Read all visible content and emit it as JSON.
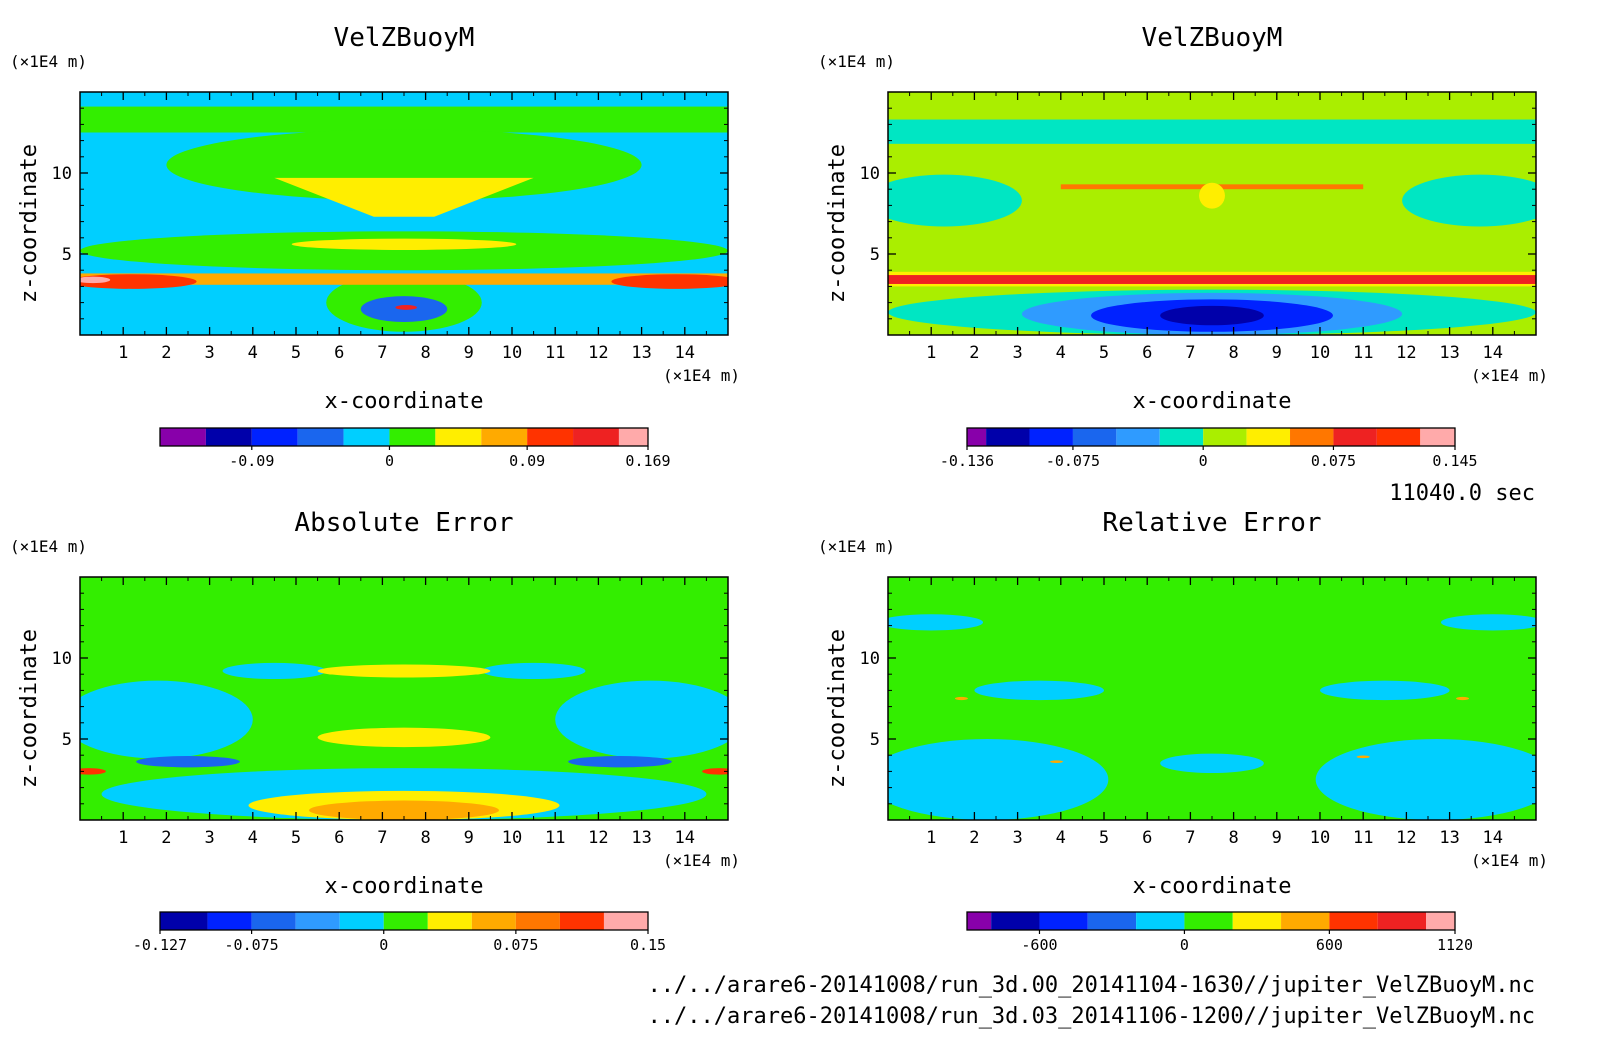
{
  "run_time": "11040.0 sec",
  "file_paths": [
    "../../arare6-20141008/run_3d.00_20141104-1630//jupiter_VelZBuoyM.nc",
    "../../arare6-20141008/run_3d.03_20141106-1200//jupiter_VelZBuoyM.nc"
  ],
  "colors": {
    "purple": "#8800aa",
    "navy": "#0000aa",
    "blue": "#0022ff",
    "midblue": "#1a66ee",
    "skyblue": "#2f9bff",
    "cyan": "#00cfff",
    "teal": "#00e6c3",
    "green": "#33ee00",
    "yellowgreen": "#aaee00",
    "yellow": "#ffee00",
    "orange": "#ffaa00",
    "darkorange": "#ff7700",
    "redorange": "#ff3300",
    "red": "#ee2222",
    "pink": "#ffaaaa"
  },
  "chart_data": [
    {
      "type": "heatmap",
      "title": "VelZBuoyM",
      "xlabel": "x-coordinate",
      "ylabel": "z-coordinate",
      "x_unit": "(×1E4 m)",
      "z_unit": "(×1E4 m)",
      "xlim": [
        0,
        15
      ],
      "zlim": [
        0,
        15
      ],
      "x_ticks": [
        1,
        2,
        3,
        4,
        5,
        6,
        7,
        8,
        9,
        10,
        11,
        12,
        13,
        14
      ],
      "z_ticks": [
        5,
        10
      ],
      "colorbar": {
        "tick_labels": [
          "-0.09",
          "0",
          "0.09",
          "0.169"
        ],
        "tick_values": [
          -0.09,
          0,
          0.09,
          0.169
        ],
        "levels": [
          -0.15,
          -0.12,
          -0.09,
          -0.06,
          -0.03,
          0,
          0.03,
          0.06,
          0.09,
          0.12,
          0.15,
          0.169
        ],
        "colors": [
          "#8800aa",
          "#0000aa",
          "#0022ff",
          "#1a66ee",
          "#00cfff",
          "#33ee00",
          "#ffee00",
          "#ffaa00",
          "#ff3300",
          "#ee2222",
          "#ffaaaa"
        ]
      },
      "background_color": "#00cfff",
      "regions": [
        {
          "color": "#33ee00",
          "shape": "rect",
          "x": [
            0,
            15
          ],
          "z": [
            12.5,
            14.1
          ]
        },
        {
          "color": "#33ee00",
          "shape": "ellipse",
          "cx": 7.5,
          "cz": 10.5,
          "rx": 5.5,
          "rz": 2.2
        },
        {
          "color": "#33ee00",
          "shape": "ellipse",
          "cx": 7.5,
          "cz": 5.2,
          "rx": 7.5,
          "rz": 1.2
        },
        {
          "color": "#33ee00",
          "shape": "ellipse",
          "cx": 7.5,
          "cz": 2.0,
          "rx": 1.8,
          "rz": 1.8
        },
        {
          "color": "#ffee00",
          "shape": "poly",
          "pts": [
            [
              4.5,
              9.7
            ],
            [
              10.5,
              9.7
            ],
            [
              8.2,
              7.3
            ],
            [
              6.8,
              7.3
            ]
          ]
        },
        {
          "color": "#ffee00",
          "shape": "ellipse",
          "cx": 7.5,
          "cz": 5.6,
          "rx": 2.6,
          "rz": 0.35
        },
        {
          "color": "#ffaa00",
          "shape": "rect",
          "x": [
            0,
            15
          ],
          "z": [
            3.1,
            3.8
          ]
        },
        {
          "color": "#ff3300",
          "shape": "ellipse",
          "cx": 1.2,
          "cz": 3.3,
          "rx": 1.5,
          "rz": 0.45
        },
        {
          "color": "#ff3300",
          "shape": "ellipse",
          "cx": 13.8,
          "cz": 3.3,
          "rx": 1.5,
          "rz": 0.45
        },
        {
          "color": "#ffaaaa",
          "shape": "ellipse",
          "cx": 0.3,
          "cz": 3.4,
          "rx": 0.4,
          "rz": 0.2
        },
        {
          "color": "#1a66ee",
          "shape": "ellipse",
          "cx": 7.5,
          "cz": 1.6,
          "rx": 1.0,
          "rz": 0.8
        },
        {
          "color": "#ee2222",
          "shape": "ellipse",
          "cx": 7.55,
          "cz": 1.7,
          "rx": 0.25,
          "rz": 0.15
        }
      ]
    },
    {
      "type": "heatmap",
      "title": "VelZBuoyM",
      "xlabel": "x-coordinate",
      "ylabel": "z-coordinate",
      "x_unit": "(×1E4 m)",
      "z_unit": "(×1E4 m)",
      "xlim": [
        0,
        15
      ],
      "zlim": [
        0,
        15
      ],
      "x_ticks": [
        1,
        2,
        3,
        4,
        5,
        6,
        7,
        8,
        9,
        10,
        11,
        12,
        13,
        14
      ],
      "z_ticks": [
        5,
        10
      ],
      "colorbar": {
        "tick_labels": [
          "-0.136",
          "-0.075",
          "0",
          "0.075",
          "0.145"
        ],
        "tick_values": [
          -0.136,
          -0.075,
          0,
          0.075,
          0.145
        ],
        "levels": [
          -0.136,
          -0.125,
          -0.1,
          -0.075,
          -0.05,
          -0.025,
          0,
          0.025,
          0.05,
          0.075,
          0.1,
          0.125,
          0.145
        ],
        "colors": [
          "#8800aa",
          "#0000aa",
          "#0022ff",
          "#1a66ee",
          "#2f9bff",
          "#00e6c3",
          "#aaee00",
          "#ffee00",
          "#ff7700",
          "#ee2222",
          "#ff3300",
          "#ffaaaa"
        ]
      },
      "background_color": "#aaee00",
      "regions": [
        {
          "color": "#00e6c3",
          "shape": "rect",
          "x": [
            0,
            15
          ],
          "z": [
            11.8,
            13.3
          ]
        },
        {
          "color": "#00e6c3",
          "shape": "ellipse",
          "cx": 1.3,
          "cz": 8.3,
          "rx": 1.8,
          "rz": 1.6
        },
        {
          "color": "#00e6c3",
          "shape": "ellipse",
          "cx": 13.7,
          "cz": 8.3,
          "rx": 1.8,
          "rz": 1.6
        },
        {
          "color": "#00e6c3",
          "shape": "ellipse",
          "cx": 7.5,
          "cz": 1.4,
          "rx": 7.5,
          "rz": 1.4
        },
        {
          "color": "#2f9bff",
          "shape": "ellipse",
          "cx": 7.5,
          "cz": 1.3,
          "rx": 4.4,
          "rz": 1.3
        },
        {
          "color": "#0022ff",
          "shape": "ellipse",
          "cx": 7.5,
          "cz": 1.2,
          "rx": 2.8,
          "rz": 1.0
        },
        {
          "color": "#0000aa",
          "shape": "ellipse",
          "cx": 7.5,
          "cz": 1.2,
          "rx": 1.2,
          "rz": 0.6
        },
        {
          "color": "#ffee00",
          "shape": "rect",
          "x": [
            0,
            15
          ],
          "z": [
            3.0,
            3.9
          ]
        },
        {
          "color": "#ee2222",
          "shape": "rect",
          "x": [
            0,
            15
          ],
          "z": [
            3.15,
            3.7
          ]
        },
        {
          "color": "#ff7700",
          "shape": "rect",
          "x": [
            4.0,
            11.0
          ],
          "z": [
            9.0,
            9.3
          ]
        },
        {
          "color": "#ffee00",
          "shape": "ellipse",
          "cx": 7.5,
          "cz": 8.6,
          "rx": 0.3,
          "rz": 0.8
        }
      ]
    },
    {
      "type": "heatmap",
      "title": "Absolute Error",
      "xlabel": "x-coordinate",
      "ylabel": "z-coordinate",
      "x_unit": "(×1E4 m)",
      "z_unit": "(×1E4 m)",
      "xlim": [
        0,
        15
      ],
      "zlim": [
        0,
        15
      ],
      "x_ticks": [
        1,
        2,
        3,
        4,
        5,
        6,
        7,
        8,
        9,
        10,
        11,
        12,
        13,
        14
      ],
      "z_ticks": [
        5,
        10
      ],
      "colorbar": {
        "tick_labels": [
          "-0.127",
          "-0.075",
          "0",
          "0.075",
          "0.15"
        ],
        "tick_values": [
          -0.127,
          -0.075,
          0,
          0.075,
          0.15
        ],
        "levels": [
          -0.127,
          -0.1,
          -0.075,
          -0.05,
          -0.025,
          0,
          0.025,
          0.05,
          0.075,
          0.1,
          0.125,
          0.15
        ],
        "colors": [
          "#0000aa",
          "#0022ff",
          "#1a66ee",
          "#2f9bff",
          "#00cfff",
          "#33ee00",
          "#ffee00",
          "#ffaa00",
          "#ff7700",
          "#ff3300",
          "#ffaaaa"
        ]
      },
      "background_color": "#33ee00",
      "regions": [
        {
          "color": "#00cfff",
          "shape": "ellipse",
          "cx": 1.8,
          "cz": 6.2,
          "rx": 2.2,
          "rz": 2.4
        },
        {
          "color": "#00cfff",
          "shape": "ellipse",
          "cx": 13.2,
          "cz": 6.2,
          "rx": 2.2,
          "rz": 2.4
        },
        {
          "color": "#00cfff",
          "shape": "ellipse",
          "cx": 7.5,
          "cz": 1.6,
          "rx": 7.0,
          "rz": 1.6
        },
        {
          "color": "#00cfff",
          "shape": "ellipse",
          "cx": 4.5,
          "cz": 9.2,
          "rx": 1.2,
          "rz": 0.5
        },
        {
          "color": "#00cfff",
          "shape": "ellipse",
          "cx": 10.5,
          "cz": 9.2,
          "rx": 1.2,
          "rz": 0.5
        },
        {
          "color": "#1a66ee",
          "shape": "ellipse",
          "cx": 2.5,
          "cz": 3.6,
          "rx": 1.2,
          "rz": 0.35
        },
        {
          "color": "#1a66ee",
          "shape": "ellipse",
          "cx": 12.5,
          "cz": 3.6,
          "rx": 1.2,
          "rz": 0.35
        },
        {
          "color": "#ffee00",
          "shape": "ellipse",
          "cx": 7.5,
          "cz": 0.9,
          "rx": 3.6,
          "rz": 0.9
        },
        {
          "color": "#ffaa00",
          "shape": "ellipse",
          "cx": 7.5,
          "cz": 0.6,
          "rx": 2.2,
          "rz": 0.6
        },
        {
          "color": "#ffee00",
          "shape": "ellipse",
          "cx": 7.5,
          "cz": 5.1,
          "rx": 2.0,
          "rz": 0.6
        },
        {
          "color": "#ffee00",
          "shape": "ellipse",
          "cx": 7.5,
          "cz": 9.2,
          "rx": 2.0,
          "rz": 0.4
        },
        {
          "color": "#ff3300",
          "shape": "ellipse",
          "cx": 0.2,
          "cz": 3.0,
          "rx": 0.4,
          "rz": 0.2
        },
        {
          "color": "#ff3300",
          "shape": "ellipse",
          "cx": 14.8,
          "cz": 3.0,
          "rx": 0.4,
          "rz": 0.2
        }
      ]
    },
    {
      "type": "heatmap",
      "title": "Relative Error",
      "xlabel": "x-coordinate",
      "ylabel": "z-coordinate",
      "x_unit": "(×1E4 m)",
      "z_unit": "(×1E4 m)",
      "xlim": [
        0,
        15
      ],
      "zlim": [
        0,
        15
      ],
      "x_ticks": [
        1,
        2,
        3,
        4,
        5,
        6,
        7,
        8,
        9,
        10,
        11,
        12,
        13,
        14
      ],
      "z_ticks": [
        5,
        10
      ],
      "colorbar": {
        "tick_labels": [
          "-600",
          "0",
          "600",
          "1120"
        ],
        "tick_values": [
          -600,
          0,
          600,
          1120
        ],
        "levels": [
          -900,
          -800,
          -600,
          -400,
          -200,
          0,
          200,
          400,
          600,
          800,
          1000,
          1120
        ],
        "colors": [
          "#8800aa",
          "#0000aa",
          "#0022ff",
          "#1a66ee",
          "#00cfff",
          "#33ee00",
          "#ffee00",
          "#ffaa00",
          "#ff3300",
          "#ee2222",
          "#ffaaaa"
        ]
      },
      "background_color": "#33ee00",
      "regions": [
        {
          "color": "#00cfff",
          "shape": "ellipse",
          "cx": 2.3,
          "cz": 2.5,
          "rx": 2.8,
          "rz": 2.5
        },
        {
          "color": "#00cfff",
          "shape": "ellipse",
          "cx": 12.7,
          "cz": 2.5,
          "rx": 2.8,
          "rz": 2.5
        },
        {
          "color": "#00cfff",
          "shape": "ellipse",
          "cx": 3.5,
          "cz": 8.0,
          "rx": 1.5,
          "rz": 0.6
        },
        {
          "color": "#00cfff",
          "shape": "ellipse",
          "cx": 11.5,
          "cz": 8.0,
          "rx": 1.5,
          "rz": 0.6
        },
        {
          "color": "#00cfff",
          "shape": "ellipse",
          "cx": 1.0,
          "cz": 12.2,
          "rx": 1.2,
          "rz": 0.5
        },
        {
          "color": "#00cfff",
          "shape": "ellipse",
          "cx": 14.0,
          "cz": 12.2,
          "rx": 1.2,
          "rz": 0.5
        },
        {
          "color": "#00cfff",
          "shape": "ellipse",
          "cx": 7.5,
          "cz": 3.5,
          "rx": 1.2,
          "rz": 0.6
        },
        {
          "color": "#ffaa00",
          "shape": "ellipse",
          "cx": 1.7,
          "cz": 7.5,
          "rx": 0.15,
          "rz": 0.1
        },
        {
          "color": "#ffaa00",
          "shape": "ellipse",
          "cx": 13.3,
          "cz": 7.5,
          "rx": 0.15,
          "rz": 0.1
        },
        {
          "color": "#ffaa00",
          "shape": "ellipse",
          "cx": 11.0,
          "cz": 3.9,
          "rx": 0.15,
          "rz": 0.08
        },
        {
          "color": "#ffaa00",
          "shape": "ellipse",
          "cx": 3.9,
          "cz": 3.6,
          "rx": 0.15,
          "rz": 0.08
        }
      ]
    }
  ]
}
